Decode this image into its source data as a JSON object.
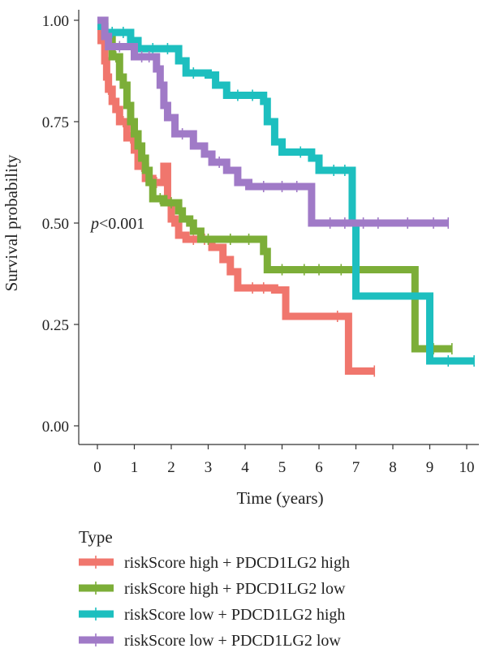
{
  "chart_data": {
    "type": "line",
    "subtype": "kaplan-meier",
    "xlabel": "Time (years)",
    "ylabel": "Survival probability",
    "xlim": [
      0,
      10
    ],
    "ylim": [
      0,
      1
    ],
    "x_ticks": [
      0,
      1,
      2,
      3,
      4,
      5,
      6,
      7,
      8,
      9,
      10
    ],
    "x_tick_labels": [
      "0",
      "1",
      "2",
      "3",
      "4",
      "5",
      "6",
      "7",
      "8",
      "9",
      "10"
    ],
    "y_ticks": [
      0,
      0.25,
      0.5,
      0.75,
      1
    ],
    "y_tick_labels": [
      "0.00",
      "0.25",
      "0.50",
      "0.75",
      "1.00"
    ],
    "grid": false,
    "annotation": {
      "text": "p<0.001",
      "x": 0,
      "y": 0.5
    },
    "legend": {
      "title": "Type",
      "placement": "bottom",
      "entries": [
        "riskScore high + PDCD1LG2 high",
        "riskScore high + PDCD1LG2 low",
        "riskScore low + PDCD1LG2 high",
        "riskScore low + PDCD1LG2 low"
      ]
    },
    "series": [
      {
        "name": "riskScore high + PDCD1LG2 high",
        "color": "#F0766D",
        "steps": [
          [
            0,
            1.0
          ],
          [
            0.1,
            0.95
          ],
          [
            0.2,
            0.9
          ],
          [
            0.25,
            0.86
          ],
          [
            0.3,
            0.83
          ],
          [
            0.4,
            0.8
          ],
          [
            0.5,
            0.78
          ],
          [
            0.6,
            0.75
          ],
          [
            0.8,
            0.71
          ],
          [
            1.0,
            0.68
          ],
          [
            1.1,
            0.64
          ],
          [
            1.3,
            0.61
          ],
          [
            1.5,
            0.6
          ],
          [
            1.8,
            0.64
          ],
          [
            1.9,
            0.55
          ],
          [
            2.0,
            0.51
          ],
          [
            2.1,
            0.5
          ],
          [
            2.2,
            0.47
          ],
          [
            2.4,
            0.46
          ],
          [
            3.1,
            0.44
          ],
          [
            3.4,
            0.41
          ],
          [
            3.6,
            0.38
          ],
          [
            3.8,
            0.34
          ],
          [
            4.8,
            0.335
          ],
          [
            5.1,
            0.27
          ],
          [
            6.8,
            0.135
          ],
          [
            7.5,
            0.135
          ]
        ],
        "censor_x": [
          0.3,
          0.7,
          0.9,
          1.2,
          1.6,
          2.6,
          2.9,
          4.2,
          4.5,
          6.5,
          7.5
        ]
      },
      {
        "name": "riskScore high + PDCD1LG2 low",
        "color": "#7CAE38",
        "steps": [
          [
            0,
            1.0
          ],
          [
            0.2,
            0.96
          ],
          [
            0.4,
            0.91
          ],
          [
            0.6,
            0.86
          ],
          [
            0.7,
            0.84
          ],
          [
            0.8,
            0.79
          ],
          [
            0.9,
            0.75
          ],
          [
            1.0,
            0.72
          ],
          [
            1.1,
            0.69
          ],
          [
            1.2,
            0.66
          ],
          [
            1.3,
            0.63
          ],
          [
            1.4,
            0.6
          ],
          [
            1.5,
            0.56
          ],
          [
            1.8,
            0.55
          ],
          [
            2.2,
            0.53
          ],
          [
            2.3,
            0.51
          ],
          [
            2.5,
            0.5
          ],
          [
            2.6,
            0.48
          ],
          [
            2.8,
            0.46
          ],
          [
            4.5,
            0.43
          ],
          [
            4.6,
            0.385
          ],
          [
            8.6,
            0.19
          ],
          [
            9.6,
            0.19
          ]
        ],
        "censor_x": [
          0.5,
          1.7,
          2.0,
          3.0,
          3.6,
          4.1,
          5.0,
          5.6,
          6.0,
          6.6,
          9.1,
          9.6
        ]
      },
      {
        "name": "riskScore low + PDCD1LG2 high",
        "color": "#1DBFBF",
        "steps": [
          [
            0,
            1.0
          ],
          [
            0.1,
            0.985
          ],
          [
            0.2,
            0.97
          ],
          [
            0.9,
            0.95
          ],
          [
            1.1,
            0.93
          ],
          [
            2.2,
            0.9
          ],
          [
            2.4,
            0.87
          ],
          [
            2.9,
            0.87
          ],
          [
            3.0,
            0.865
          ],
          [
            3.2,
            0.84
          ],
          [
            3.5,
            0.815
          ],
          [
            4.5,
            0.8
          ],
          [
            4.6,
            0.75
          ],
          [
            4.8,
            0.7
          ],
          [
            5.0,
            0.675
          ],
          [
            5.8,
            0.66
          ],
          [
            6.0,
            0.63
          ],
          [
            6.8,
            0.63
          ],
          [
            6.9,
            0.5
          ],
          [
            7.0,
            0.32
          ],
          [
            8.8,
            0.32
          ],
          [
            9.0,
            0.16
          ],
          [
            10.2,
            0.16
          ]
        ],
        "censor_x": [
          0.4,
          0.7,
          1.5,
          1.9,
          2.6,
          3.8,
          4.2,
          5.5,
          6.4,
          6.7,
          9.5,
          10.2
        ]
      },
      {
        "name": "riskScore low + PDCD1LG2 low",
        "color": "#A07AC7",
        "steps": [
          [
            0,
            1.0
          ],
          [
            0.2,
            0.96
          ],
          [
            0.3,
            0.935
          ],
          [
            1.0,
            0.91
          ],
          [
            1.6,
            0.88
          ],
          [
            1.7,
            0.84
          ],
          [
            1.8,
            0.79
          ],
          [
            1.9,
            0.76
          ],
          [
            2.1,
            0.72
          ],
          [
            2.6,
            0.69
          ],
          [
            2.9,
            0.67
          ],
          [
            3.1,
            0.65
          ],
          [
            3.5,
            0.63
          ],
          [
            3.8,
            0.6
          ],
          [
            4.1,
            0.59
          ],
          [
            5.8,
            0.5
          ],
          [
            9.5,
            0.5
          ]
        ],
        "censor_x": [
          0.6,
          1.2,
          1.4,
          2.3,
          3.3,
          4.5,
          5.0,
          5.4,
          6.3,
          6.7,
          7.2,
          7.6,
          8.4,
          9.1,
          9.5
        ]
      }
    ]
  }
}
